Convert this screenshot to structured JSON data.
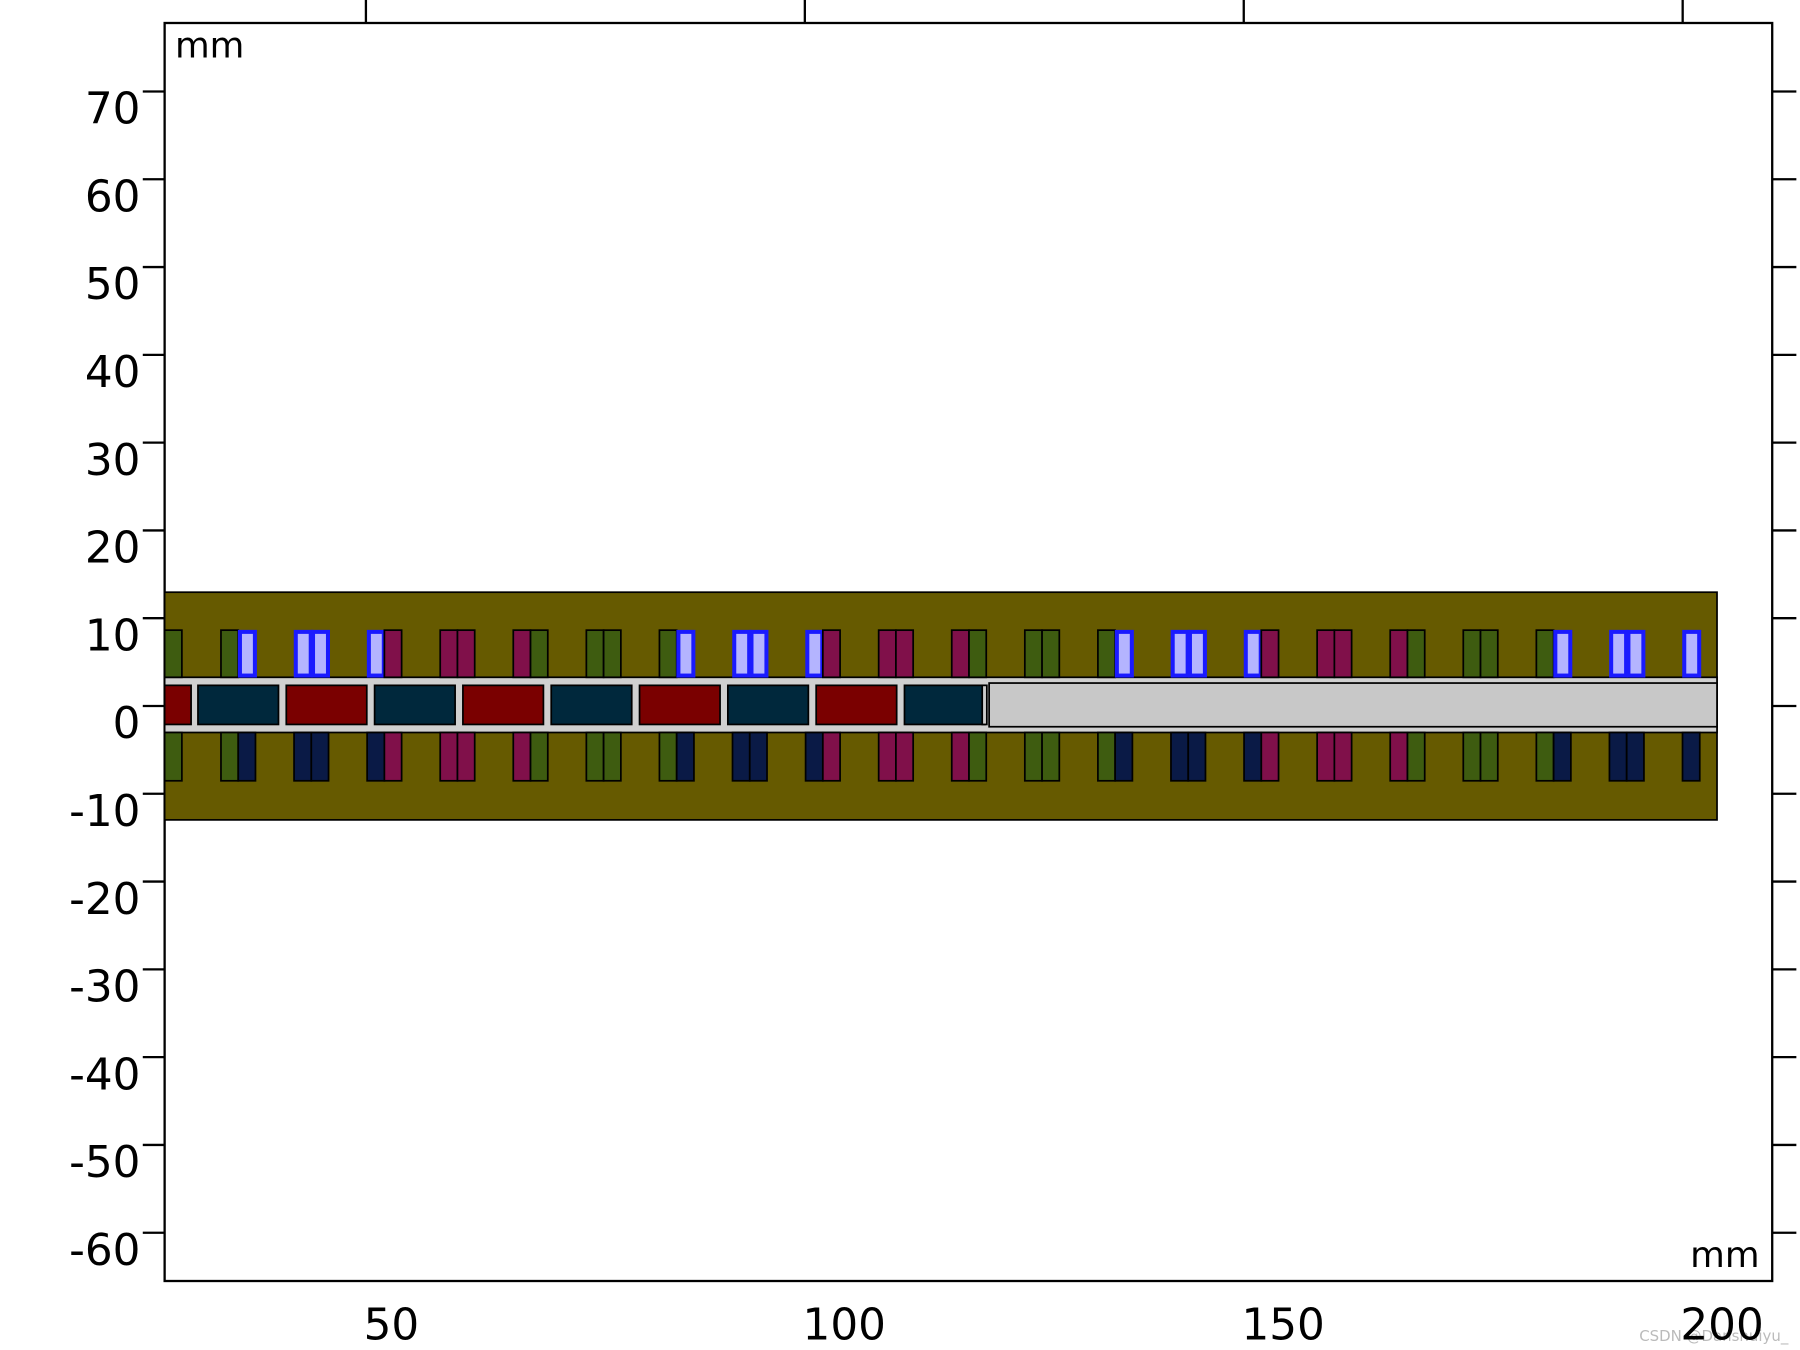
{
  "plot": {
    "x_unit": "mm",
    "y_unit": "mm",
    "xlim": [
      27.07,
      210.2
    ],
    "ylim": [
      -65.5,
      77.8
    ],
    "xticks": [
      50,
      100,
      150,
      200
    ],
    "yticks": [
      70,
      60,
      50,
      40,
      30,
      20,
      10,
      0,
      -10,
      -20,
      -30,
      -40,
      -50,
      -60
    ],
    "watermark": "CSDN @Danshuiyu_"
  }
}
